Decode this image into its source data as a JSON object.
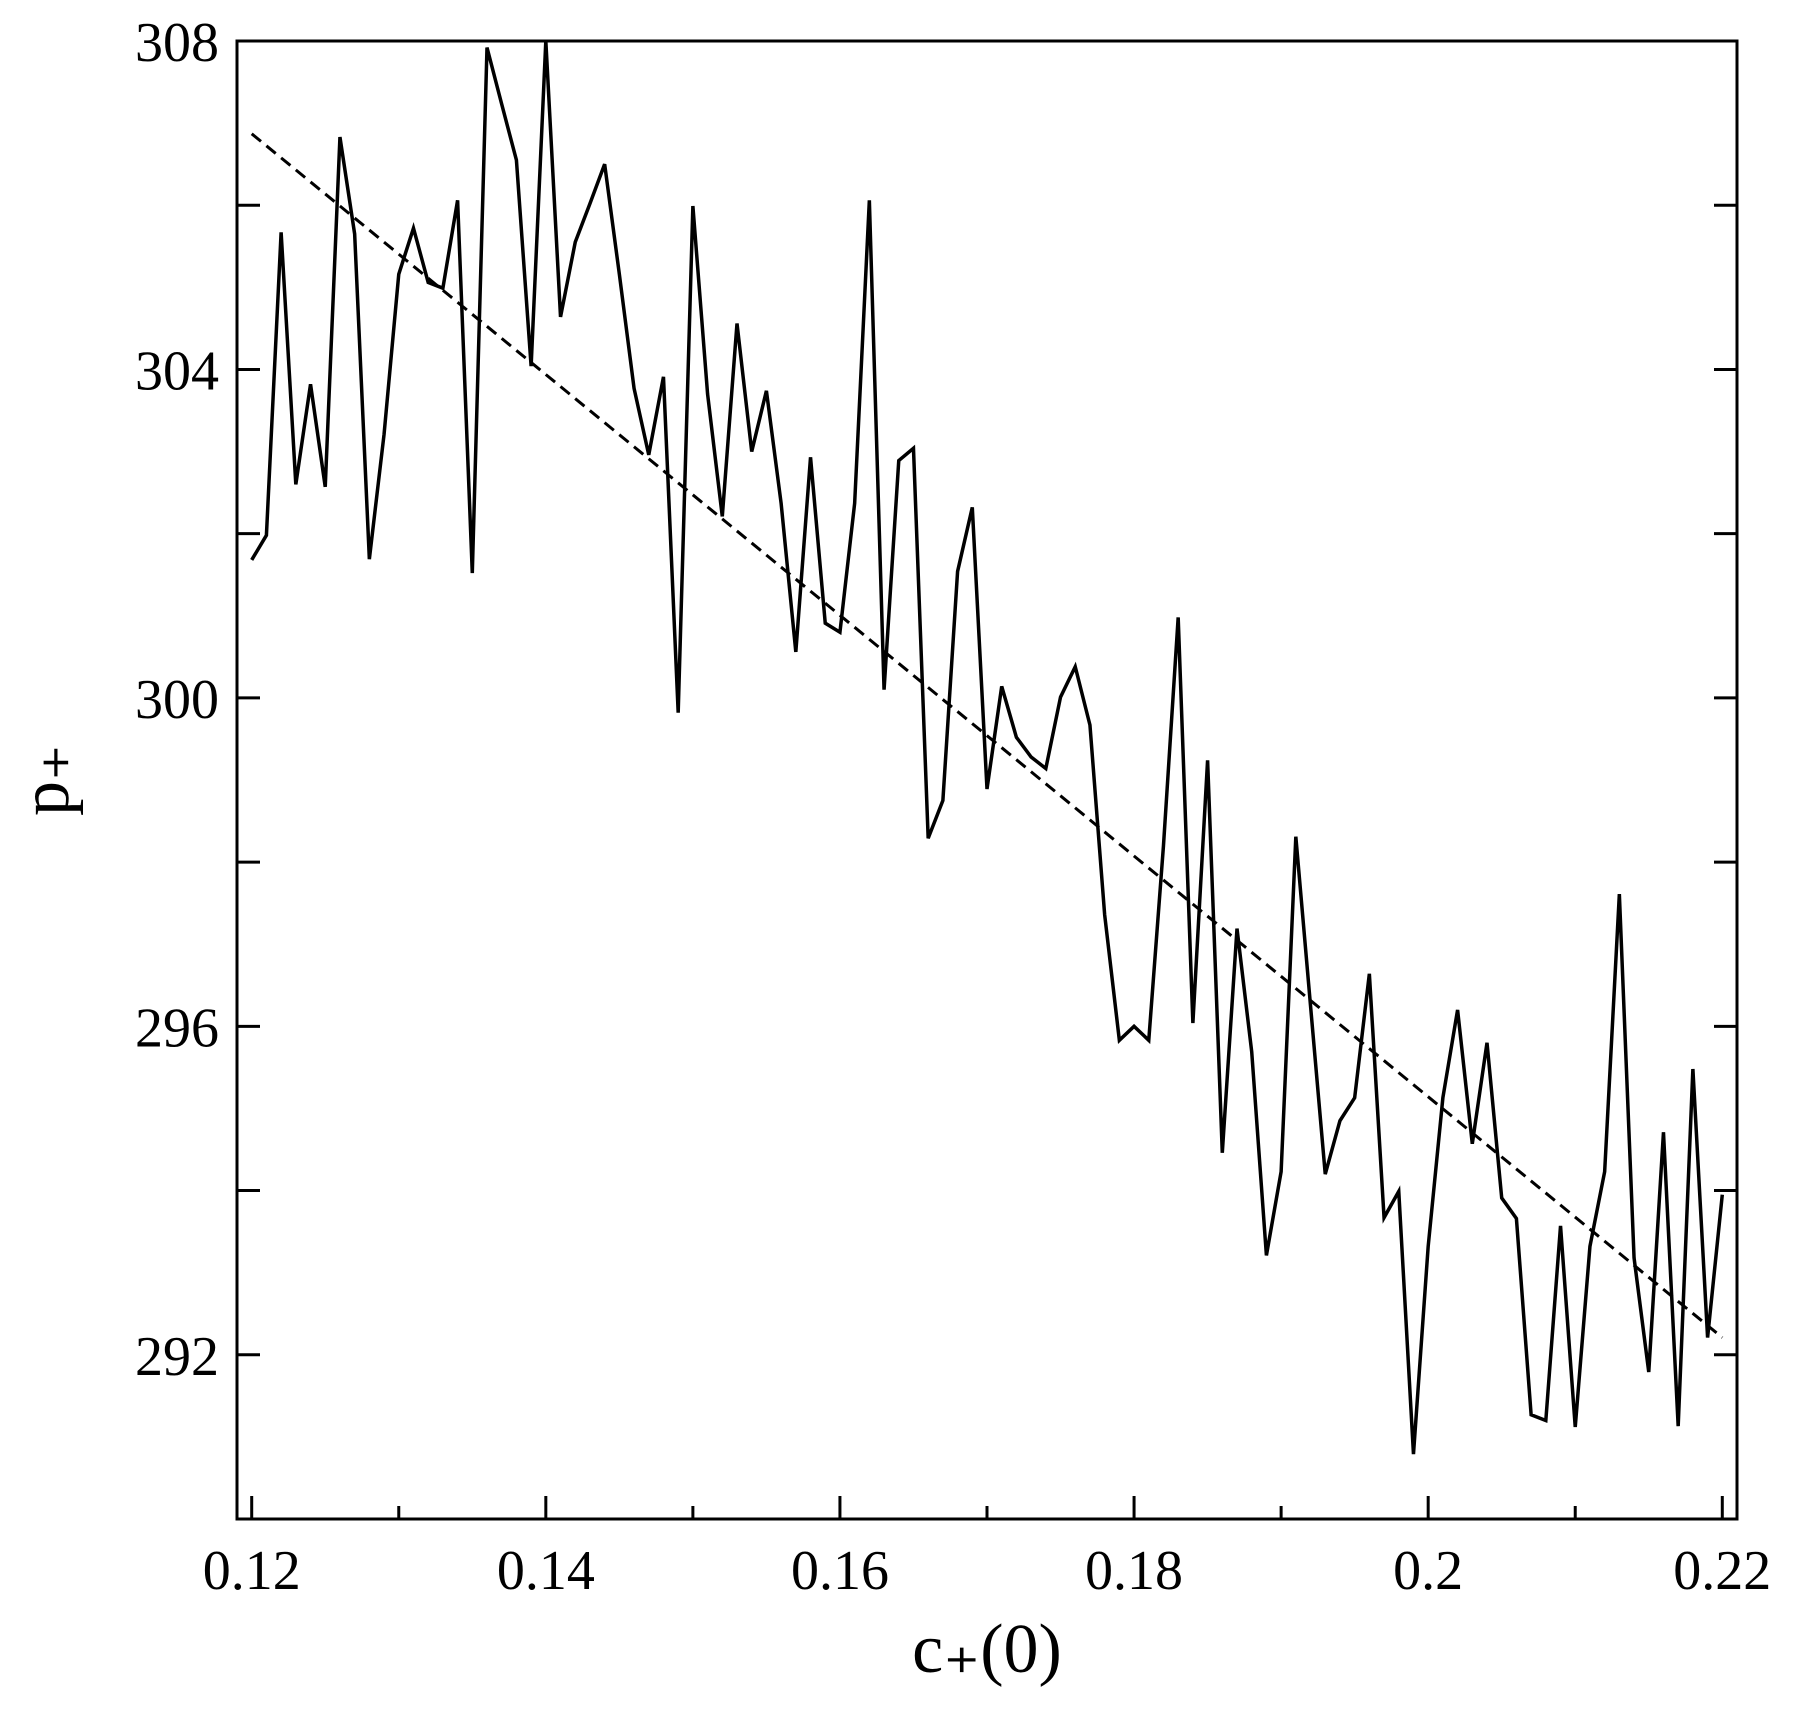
{
  "chart_data": {
    "type": "line",
    "x_label": "c₊(0)",
    "y_label": "p₊",
    "x": [
      0.12,
      0.121,
      0.122,
      0.123,
      0.124,
      0.125,
      0.126,
      0.127,
      0.128,
      0.129,
      0.13,
      0.131,
      0.132,
      0.133,
      0.134,
      0.135,
      0.136,
      0.137,
      0.138,
      0.139,
      0.14,
      0.141,
      0.142,
      0.143,
      0.144,
      0.145,
      0.146,
      0.147,
      0.148,
      0.149,
      0.15,
      0.151,
      0.152,
      0.153,
      0.154,
      0.155,
      0.156,
      0.157,
      0.158,
      0.159,
      0.16,
      0.161,
      0.162,
      0.163,
      0.164,
      0.165,
      0.166,
      0.167,
      0.168,
      0.169,
      0.17,
      0.171,
      0.172,
      0.173,
      0.174,
      0.175,
      0.176,
      0.177,
      0.178,
      0.179,
      0.18,
      0.181,
      0.182,
      0.183,
      0.184,
      0.185,
      0.186,
      0.187,
      0.188,
      0.189,
      0.19,
      0.191,
      0.192,
      0.193,
      0.194,
      0.195,
      0.196,
      0.197,
      0.198,
      0.199,
      0.2,
      0.201,
      0.202,
      0.203,
      0.204,
      0.205,
      0.206,
      0.207,
      0.208,
      0.209,
      0.21,
      0.211,
      0.212,
      0.213,
      0.214,
      0.215,
      0.216,
      0.217,
      0.218,
      0.219,
      0.22
    ],
    "series": [
      {
        "color": "#000000",
        "dash": false,
        "values": [
          301.68,
          301.98,
          305.67,
          302.6,
          303.82,
          302.57,
          306.83,
          305.65,
          301.69,
          303.21,
          305.16,
          305.72,
          305.06,
          304.99,
          306.06,
          301.52,
          307.92,
          307.23,
          306.55,
          304.04,
          308.0,
          304.64,
          305.55,
          306.02,
          306.5,
          305.16,
          303.77,
          302.96,
          303.91,
          299.82,
          305.99,
          303.7,
          302.21,
          304.56,
          303.0,
          303.74,
          302.37,
          300.56,
          302.93,
          300.91,
          300.8,
          302.37,
          306.06,
          300.1,
          302.89,
          303.04,
          298.29,
          298.75,
          301.54,
          302.32,
          298.89,
          300.14,
          299.52,
          299.28,
          299.14,
          300.01,
          300.38,
          299.67,
          297.36,
          295.83,
          296.0,
          295.83,
          298.2,
          300.98,
          296.04,
          299.24,
          294.46,
          297.19,
          295.69,
          293.21,
          294.23,
          298.31,
          296.25,
          294.2,
          294.85,
          295.13,
          296.64,
          293.67,
          293.99,
          290.79,
          293.32,
          295.13,
          296.2,
          294.57,
          295.8,
          293.91,
          293.66,
          291.27,
          291.2,
          293.57,
          291.12,
          293.32,
          294.23,
          297.61,
          293.18,
          291.79,
          294.71,
          291.13,
          295.48,
          292.21,
          293.95
        ]
      },
      {
        "color": "#000000",
        "dash": true,
        "x": [
          0.12,
          0.22
        ],
        "values": [
          306.87,
          292.21
        ]
      }
    ],
    "xlim": [
      0.119,
      0.221
    ],
    "xticks": [
      0.12,
      0.14,
      0.16,
      0.18,
      0.2,
      0.22
    ],
    "x_minor_ticks": [
      0.13,
      0.15,
      0.17,
      0.19,
      0.21
    ],
    "ylim": [
      290,
      308
    ],
    "yticks": [
      292,
      296,
      300,
      304,
      308
    ],
    "y_minor_ticks": [
      294,
      298,
      302,
      306
    ],
    "grid": false
  }
}
